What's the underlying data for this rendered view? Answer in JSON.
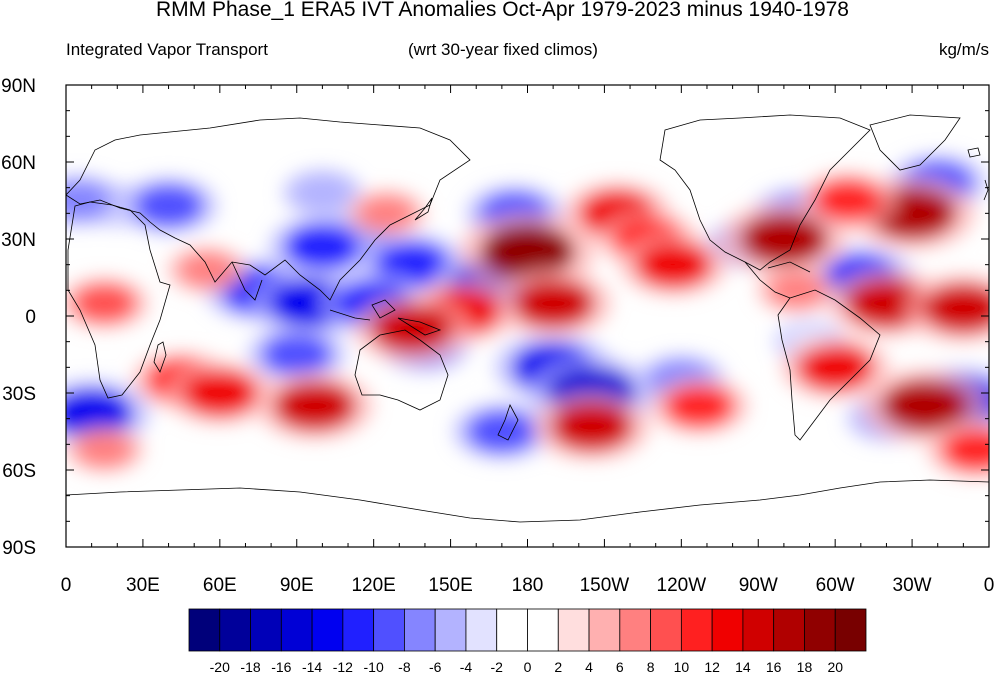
{
  "title": "RMM Phase_1 ERA5 IVT Anomalies Oct-Apr 1979-2023 minus 1940-1978",
  "left_string": "Integrated Vapor Transport",
  "center_string": "(wrt 30-year fixed climos)",
  "right_string": "kg/m/s",
  "chart_data": {
    "type": "heatmap",
    "projection": "cylindrical-equidistant",
    "lon_range": [
      0,
      360
    ],
    "lat_range": [
      -90,
      90
    ],
    "lat_ticks": [
      "90N",
      "60N",
      "30N",
      "0",
      "30S",
      "60S",
      "90S"
    ],
    "lon_ticks": [
      "0",
      "30E",
      "60E",
      "90E",
      "120E",
      "150E",
      "180",
      "150W",
      "120W",
      "90W",
      "60W",
      "30W",
      "0"
    ],
    "colorbar": {
      "levels": [
        "-20",
        "-18",
        "-16",
        "-14",
        "-12",
        "-10",
        "-8",
        "-6",
        "-4",
        "-2",
        "0",
        "2",
        "4",
        "6",
        "8",
        "10",
        "12",
        "14",
        "16",
        "18",
        "20"
      ],
      "colors": [
        "#00007a",
        "#00009a",
        "#0000b8",
        "#0000d6",
        "#0000f0",
        "#2020ff",
        "#5050ff",
        "#8585ff",
        "#b3b3ff",
        "#e2e2ff",
        "#ffffff",
        "#ffffff",
        "#ffdede",
        "#ffb0b0",
        "#ff8080",
        "#ff5050",
        "#ff2020",
        "#f00000",
        "#d00000",
        "#b00000",
        "#900000",
        "#780000"
      ],
      "units": "kg/m/s"
    },
    "anomaly_features": [
      {
        "lon": 20,
        "lat": 43,
        "value": -4
      },
      {
        "lon": 40,
        "lat": 43,
        "value": -10
      },
      {
        "lon": 5,
        "lat": 45,
        "value": -8
      },
      {
        "lon": 100,
        "lat": 48,
        "value": -6
      },
      {
        "lon": 115,
        "lat": 30,
        "value": -8
      },
      {
        "lon": 100,
        "lat": 27,
        "value": -12
      },
      {
        "lon": 135,
        "lat": 20,
        "value": -12
      },
      {
        "lon": 165,
        "lat": 12,
        "value": -14
      },
      {
        "lon": 175,
        "lat": 40,
        "value": -10
      },
      {
        "lon": 75,
        "lat": 10,
        "value": -12
      },
      {
        "lon": 95,
        "lat": 5,
        "value": -14
      },
      {
        "lon": 120,
        "lat": 5,
        "value": -12
      },
      {
        "lon": 90,
        "lat": -15,
        "value": -10
      },
      {
        "lon": 140,
        "lat": -12,
        "value": -8
      },
      {
        "lon": 190,
        "lat": -20,
        "value": -14
      },
      {
        "lon": 205,
        "lat": -30,
        "value": -16
      },
      {
        "lon": 170,
        "lat": -45,
        "value": -10
      },
      {
        "lon": 240,
        "lat": -25,
        "value": -8
      },
      {
        "lon": 10,
        "lat": -38,
        "value": -14
      },
      {
        "lon": 350,
        "lat": -33,
        "value": -14
      },
      {
        "lon": 320,
        "lat": -40,
        "value": -6
      },
      {
        "lon": 310,
        "lat": 15,
        "value": -12
      },
      {
        "lon": 340,
        "lat": 52,
        "value": -10
      },
      {
        "lon": 285,
        "lat": 40,
        "value": -8
      },
      {
        "lon": 265,
        "lat": 28,
        "value": -6
      },
      {
        "lon": 290,
        "lat": -10,
        "value": -4
      },
      {
        "lon": 180,
        "lat": 25,
        "value": 18
      },
      {
        "lon": 190,
        "lat": 5,
        "value": 14
      },
      {
        "lon": 155,
        "lat": 2,
        "value": 12
      },
      {
        "lon": 135,
        "lat": -5,
        "value": 14
      },
      {
        "lon": 215,
        "lat": 40,
        "value": 12
      },
      {
        "lon": 227,
        "lat": 30,
        "value": 10
      },
      {
        "lon": 237,
        "lat": 20,
        "value": 12
      },
      {
        "lon": 280,
        "lat": 30,
        "value": 16
      },
      {
        "lon": 330,
        "lat": 40,
        "value": 16
      },
      {
        "lon": 305,
        "lat": 45,
        "value": 10
      },
      {
        "lon": 320,
        "lat": 5,
        "value": 14
      },
      {
        "lon": 350,
        "lat": 3,
        "value": 14
      },
      {
        "lon": 285,
        "lat": 10,
        "value": 6
      },
      {
        "lon": 300,
        "lat": -20,
        "value": 12
      },
      {
        "lon": 335,
        "lat": -35,
        "value": 16
      },
      {
        "lon": 205,
        "lat": -43,
        "value": 14
      },
      {
        "lon": 247,
        "lat": -35,
        "value": 10
      },
      {
        "lon": 97,
        "lat": -35,
        "value": 14
      },
      {
        "lon": 45,
        "lat": -25,
        "value": 10
      },
      {
        "lon": 60,
        "lat": -30,
        "value": 12
      },
      {
        "lon": 15,
        "lat": 5,
        "value": 8
      },
      {
        "lon": 55,
        "lat": 18,
        "value": 6
      },
      {
        "lon": 355,
        "lat": -52,
        "value": 10
      },
      {
        "lon": 15,
        "lat": -52,
        "value": 6
      },
      {
        "lon": 125,
        "lat": 40,
        "value": 6
      }
    ]
  }
}
